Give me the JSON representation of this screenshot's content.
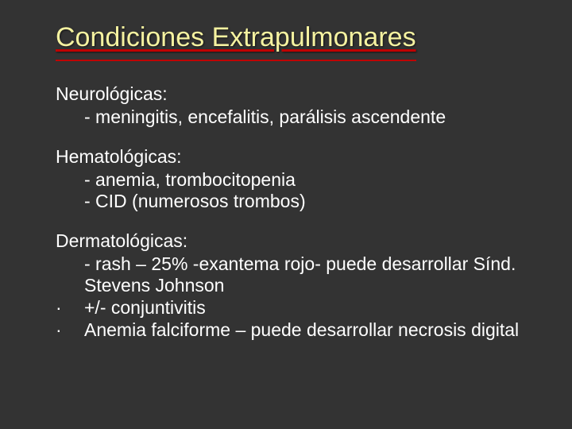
{
  "slide": {
    "title": "Condiciones Extrapulmonares",
    "sections": [
      {
        "heading": "Neurológicas:",
        "items": [
          "- meningitis, encefalitis, parálisis ascendente"
        ]
      },
      {
        "heading": "Hematológicas:",
        "items": [
          "-  anemia, trombocitopenia",
          "-  CID (numerosos trombos)"
        ]
      },
      {
        "heading": "Dermatológicas:",
        "items": [
          " - rash – 25% -exantema rojo- puede desarrollar Sínd. Stevens Johnson"
        ],
        "bullets": [
          "+/- conjuntivitis",
          "Anemia falciforme – puede desarrollar necrosis digital"
        ]
      }
    ]
  },
  "style": {
    "background_color": "#333333",
    "title_color": "#f5f2a0",
    "underline_color": "#c00000",
    "text_color": "#ffffff",
    "title_fontsize": 34,
    "body_fontsize": 23
  }
}
